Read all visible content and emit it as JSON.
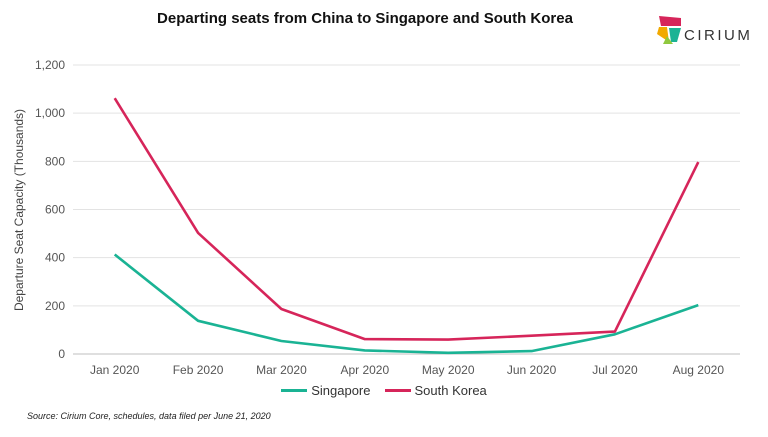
{
  "chart_data": {
    "type": "line",
    "title": "Departing seats from China to Singapore and South Korea",
    "xlabel": "",
    "ylabel": "Departure Seat Capacity (Thousands)",
    "categories": [
      "Jan 2020",
      "Feb 2020",
      "Mar 2020",
      "Apr 2020",
      "May 2020",
      "Jun 2020",
      "Jul 2020",
      "Aug 2020"
    ],
    "ylim": [
      0,
      1200
    ],
    "yticks": [
      0,
      200,
      400,
      600,
      800,
      1000,
      1200
    ],
    "ytick_labels": [
      "0",
      "200",
      "400",
      "600",
      "800",
      "1,000",
      "1,200"
    ],
    "grid": "horizontal",
    "legend": "bottom",
    "series": [
      {
        "name": "Singapore",
        "color": "#1ab394",
        "values": [
          413,
          138,
          54,
          15,
          5,
          12,
          82,
          203
        ]
      },
      {
        "name": "South Korea",
        "color": "#d6255a",
        "values": [
          1062,
          503,
          187,
          62,
          60,
          76,
          93,
          797
        ]
      }
    ]
  },
  "branding": {
    "logo_text": "CIRIUM",
    "logo_colors": [
      "#d6255a",
      "#f2a900",
      "#1ab394",
      "#8fc83f"
    ]
  },
  "source_note": "Source: Cirium Core, schedules, data filed per June 21, 2020"
}
